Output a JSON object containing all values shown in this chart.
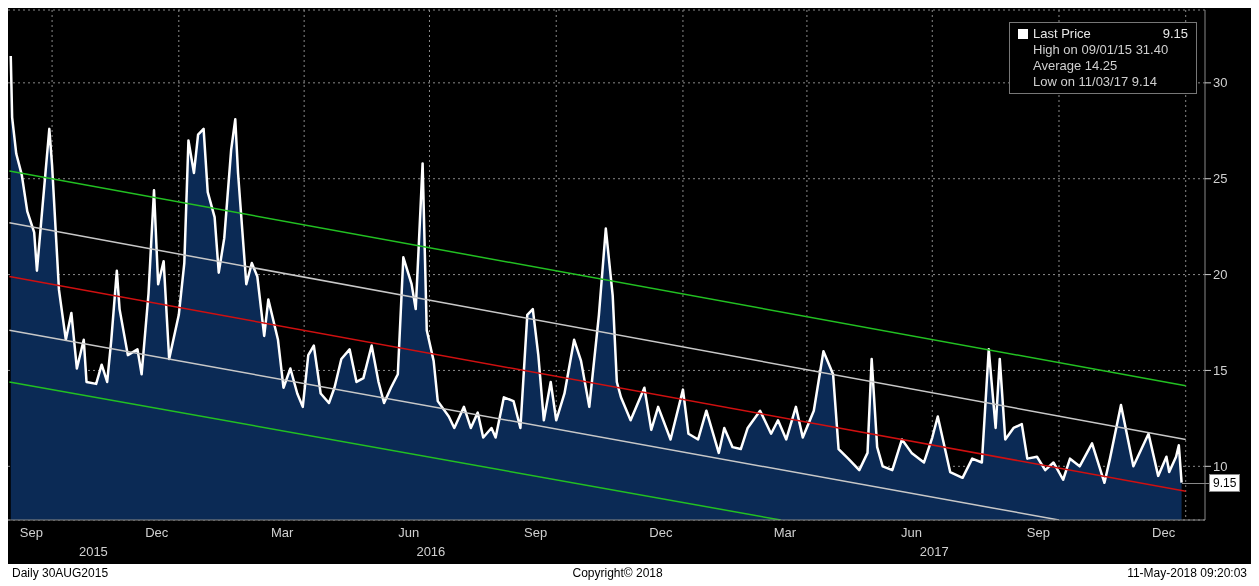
{
  "chart_data": {
    "type": "area",
    "x": [
      "2015-09-01",
      "2015-09-02",
      "2015-09-05",
      "2015-09-09",
      "2015-09-13",
      "2015-09-18",
      "2015-09-20",
      "2015-09-24",
      "2015-09-29",
      "2015-10-01",
      "2015-10-06",
      "2015-10-11",
      "2015-10-15",
      "2015-10-19",
      "2015-10-24",
      "2015-10-26",
      "2015-11-02",
      "2015-11-06",
      "2015-11-10",
      "2015-11-13",
      "2015-11-17",
      "2015-11-19",
      "2015-11-25",
      "2015-12-02",
      "2015-12-05",
      "2015-12-10",
      "2015-12-14",
      "2015-12-17",
      "2015-12-21",
      "2015-12-25",
      "2016-01-01",
      "2016-01-05",
      "2016-01-08",
      "2016-01-12",
      "2016-01-15",
      "2016-01-19",
      "2016-01-22",
      "2016-01-27",
      "2016-01-30",
      "2016-02-03",
      "2016-02-08",
      "2016-02-11",
      "2016-02-13",
      "2016-02-19",
      "2016-02-23",
      "2016-02-27",
      "2016-03-03",
      "2016-03-06",
      "2016-03-13",
      "2016-03-17",
      "2016-03-22",
      "2016-03-27",
      "2016-03-31",
      "2016-04-04",
      "2016-04-08",
      "2016-04-13",
      "2016-04-19",
      "2016-04-23",
      "2016-04-28",
      "2016-05-04",
      "2016-05-09",
      "2016-05-14",
      "2016-05-20",
      "2016-05-25",
      "2016-05-29",
      "2016-06-03",
      "2016-06-08",
      "2016-06-12",
      "2016-06-18",
      "2016-06-21",
      "2016-06-23",
      "2016-06-26",
      "2016-06-29",
      "2016-07-04",
      "2016-07-07",
      "2016-07-15",
      "2016-07-19",
      "2016-07-26",
      "2016-07-31",
      "2016-08-05",
      "2016-08-09",
      "2016-08-15",
      "2016-08-18",
      "2016-08-24",
      "2016-08-31",
      "2016-09-05",
      "2016-09-10",
      "2016-09-14",
      "2016-09-18",
      "2016-09-22",
      "2016-09-27",
      "2016-10-01",
      "2016-10-07",
      "2016-10-14",
      "2016-10-19",
      "2016-10-25",
      "2016-11-01",
      "2016-11-06",
      "2016-11-11",
      "2016-11-14",
      "2016-11-17",
      "2016-11-24",
      "2016-12-04",
      "2016-12-09",
      "2016-12-14",
      "2016-12-23",
      "2017-01-01",
      "2017-01-05",
      "2017-01-12",
      "2017-01-18",
      "2017-01-27",
      "2017-01-31",
      "2017-02-06",
      "2017-02-12",
      "2017-02-17",
      "2017-02-26",
      "2017-03-06",
      "2017-03-11",
      "2017-03-17",
      "2017-03-24",
      "2017-03-29",
      "2017-04-06",
      "2017-04-13",
      "2017-04-20",
      "2017-04-24",
      "2017-05-01",
      "2017-05-09",
      "2017-05-15",
      "2017-05-18",
      "2017-05-22",
      "2017-05-26",
      "2017-06-02",
      "2017-06-09",
      "2017-06-16",
      "2017-06-25",
      "2017-07-01",
      "2017-07-05",
      "2017-07-14",
      "2017-07-23",
      "2017-07-30",
      "2017-08-06",
      "2017-08-11",
      "2017-08-16",
      "2017-08-19",
      "2017-08-23",
      "2017-08-29",
      "2017-09-04",
      "2017-09-08",
      "2017-09-15",
      "2017-09-21",
      "2017-09-27",
      "2017-10-04",
      "2017-10-09",
      "2017-10-16",
      "2017-10-25",
      "2017-11-03",
      "2017-11-07",
      "2017-11-15",
      "2017-11-24",
      "2017-12-05",
      "2017-12-12",
      "2017-12-18",
      "2017-12-20",
      "2017-12-25",
      "2017-12-27",
      "2017-12-29"
    ],
    "series": [
      {
        "name": "Last Price",
        "color": "#ffffff",
        "values": [
          31.4,
          28.2,
          26.3,
          25.2,
          23.3,
          22.2,
          20.2,
          23.5,
          27.6,
          25.7,
          19.2,
          16.6,
          18.0,
          15.1,
          16.6,
          14.4,
          14.3,
          15.3,
          14.4,
          16.6,
          20.2,
          18.2,
          15.8,
          16.1,
          14.8,
          19.0,
          24.4,
          19.5,
          20.7,
          15.6,
          17.9,
          20.6,
          27.0,
          25.3,
          27.3,
          27.6,
          24.3,
          23.0,
          20.1,
          21.9,
          26.5,
          28.1,
          25.3,
          19.5,
          20.6,
          19.9,
          16.8,
          18.7,
          16.6,
          14.1,
          15.1,
          13.8,
          13.1,
          15.8,
          16.3,
          13.8,
          13.3,
          14.1,
          15.6,
          16.1,
          14.4,
          14.6,
          16.3,
          14.4,
          13.3,
          14.1,
          14.8,
          20.9,
          19.5,
          18.2,
          21.2,
          25.8,
          17.1,
          15.5,
          13.4,
          12.6,
          12.0,
          13.1,
          12.0,
          12.8,
          11.5,
          12.0,
          11.5,
          13.6,
          13.4,
          12.0,
          17.9,
          18.2,
          15.8,
          12.4,
          14.4,
          12.4,
          13.8,
          16.6,
          15.5,
          13.1,
          17.9,
          22.4,
          18.9,
          14.4,
          13.6,
          12.4,
          14.1,
          11.9,
          13.1,
          11.4,
          14.0,
          11.7,
          11.4,
          12.9,
          10.7,
          12.0,
          11.0,
          10.9,
          12.0,
          12.9,
          11.7,
          12.4,
          11.4,
          13.1,
          11.5,
          12.9,
          16.0,
          14.8,
          10.9,
          10.4,
          9.8,
          10.7,
          15.6,
          11.0,
          10.0,
          9.8,
          11.4,
          10.7,
          10.2,
          11.5,
          12.6,
          9.7,
          9.4,
          10.4,
          10.2,
          16.1,
          12.0,
          15.6,
          11.4,
          12.0,
          12.2,
          10.4,
          10.5,
          9.8,
          10.2,
          9.3,
          10.4,
          10.0,
          11.2,
          9.14,
          10.4,
          13.2,
          10.0,
          11.7,
          9.5,
          10.5,
          9.7,
          10.5,
          11.1,
          9.15
        ]
      },
      {
        "type": "line",
        "color": "#22c022",
        "x": [
          "2015-08-31",
          "2018-01-01"
        ],
        "values": [
          25.4,
          14.2
        ]
      },
      {
        "type": "line",
        "color": "#c8c8c8",
        "x": [
          "2015-08-31",
          "2018-01-01"
        ],
        "values": [
          22.7,
          11.4
        ]
      },
      {
        "type": "line",
        "color": "#d01010",
        "x": [
          "2015-08-31",
          "2018-01-01"
        ],
        "values": [
          19.9,
          8.7
        ]
      },
      {
        "type": "line",
        "color": "#c8c8c8",
        "x": [
          "2015-08-31",
          "2017-10-01"
        ],
        "values": [
          17.1,
          7.2
        ]
      },
      {
        "type": "line",
        "color": "#22c022",
        "x": [
          "2015-08-31",
          "2017-03-13"
        ],
        "values": [
          14.4,
          7.2
        ]
      }
    ],
    "xlim": [
      "2015-08-30",
      "2018-01-15"
    ],
    "xticks": [
      {
        "value": "2015-09-16",
        "label": "Sep"
      },
      {
        "value": "2015-10-01",
        "label": null
      },
      {
        "value": "2015-12-16",
        "label": "Dec"
      },
      {
        "value": "2016-01-01",
        "label": null
      },
      {
        "value": "2016-03-16",
        "label": "Mar"
      },
      {
        "value": "2016-04-01",
        "label": null
      },
      {
        "value": "2016-06-16",
        "label": "Jun"
      },
      {
        "value": "2016-07-01",
        "label": null
      },
      {
        "value": "2016-09-16",
        "label": "Sep"
      },
      {
        "value": "2016-10-01",
        "label": null
      },
      {
        "value": "2016-12-16",
        "label": "Dec"
      },
      {
        "value": "2017-01-01",
        "label": null
      },
      {
        "value": "2017-03-16",
        "label": "Mar"
      },
      {
        "value": "2017-04-01",
        "label": null
      },
      {
        "value": "2017-06-16",
        "label": "Jun"
      },
      {
        "value": "2017-07-01",
        "label": null
      },
      {
        "value": "2017-09-16",
        "label": "Sep"
      },
      {
        "value": "2017-10-01",
        "label": null
      },
      {
        "value": "2017-12-16",
        "label": "Dec"
      },
      {
        "value": "2018-01-01",
        "label": null
      }
    ],
    "ylim": [
      7.2,
      33.8
    ],
    "yticks": [
      10,
      15,
      20,
      25,
      30
    ],
    "grid": true,
    "legend": "top right",
    "marker": "none",
    "line_style": "solid",
    "annotations": [
      "9.15",
      "High on 09/01/15 31.40",
      "Average 14.25",
      "Low on 11/03/17 9.14",
      "2015",
      "2016",
      "2017",
      "Daily 30AUG2015",
      "Copyright© 2018",
      "11-May-2018 09:20:03",
      {
        "text": "9.15",
        "x": "2017-12-29",
        "y": 9.15
      }
    ]
  }
}
